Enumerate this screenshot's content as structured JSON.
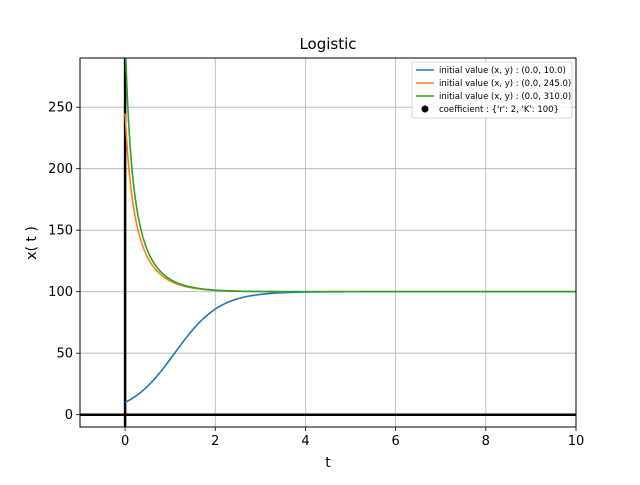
{
  "chart_data": {
    "type": "line",
    "title": "Logistic",
    "xlabel": "t",
    "ylabel": "x( t )",
    "xlim": [
      -1,
      10
    ],
    "ylim": [
      -10,
      290
    ],
    "xticks": [
      0,
      2,
      4,
      6,
      8,
      10
    ],
    "xtick_labels": [
      "0",
      "2",
      "4",
      "6",
      "8",
      "10"
    ],
    "yticks": [
      0,
      50,
      100,
      150,
      200,
      250
    ],
    "ytick_labels": [
      "0",
      "50",
      "100",
      "150",
      "200",
      "250"
    ],
    "grid": true,
    "legend_position": "top-right",
    "coefficient": {
      "r": 2,
      "K": 100
    },
    "series": [
      {
        "name": "initial value (x, y) : (0.0, 10.0)",
        "color": "#1f77b4",
        "x0": 0.0,
        "y0": 10.0,
        "x": [
          0,
          0.5,
          1,
          1.5,
          2,
          2.5,
          3,
          4,
          5,
          6,
          8,
          10
        ],
        "y": [
          10.0,
          23.2,
          45.1,
          69.1,
          85.8,
          94.3,
          97.8,
          99.7,
          100.0,
          100.0,
          100.0,
          100.0
        ]
      },
      {
        "name": "initial value (x, y) : (0.0, 245.0)",
        "color": "#ff7f0e",
        "x0": 0.0,
        "y0": 245.0,
        "x": [
          0,
          0.5,
          1,
          1.5,
          2,
          2.5,
          3,
          4,
          5,
          6,
          8,
          10
        ],
        "y": [
          245.0,
          136.4,
          110.9,
          103.4,
          101.1,
          100.4,
          100.1,
          100.0,
          100.0,
          100.0,
          100.0,
          100.0
        ]
      },
      {
        "name": "initial value (x, y) : (0.0, 310.0)",
        "color": "#2ca02c",
        "x0": 0.0,
        "y0": 310.0,
        "x": [
          0,
          0.5,
          1,
          1.5,
          2,
          2.5,
          3,
          4,
          5,
          6,
          8,
          10
        ],
        "y": [
          310.0,
          141.1,
          112.0,
          103.8,
          101.2,
          100.4,
          100.1,
          100.0,
          100.0,
          100.0,
          100.0,
          100.0
        ]
      }
    ],
    "legend_extra": {
      "label": "coefficient : {'r': 2, 'K': 100}",
      "marker": "circle",
      "color": "#000000"
    }
  }
}
